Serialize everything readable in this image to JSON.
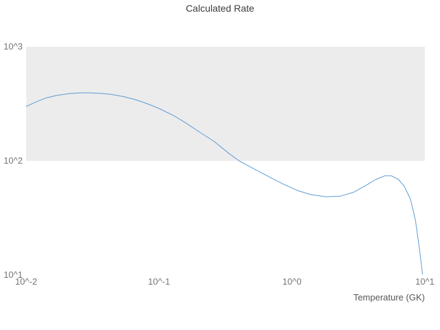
{
  "chart_data": {
    "type": "line",
    "title": "Calculated Rate",
    "xlabel": "Temperature (GK)",
    "ylabel": "",
    "x_scale": "log",
    "y_scale": "log",
    "xlim": [
      0.01,
      10
    ],
    "ylim": [
      10,
      1000
    ],
    "grid": false,
    "legend": "none",
    "x_tick_labels": [
      "10^-2",
      "10^-1",
      "10^0",
      "10^1"
    ],
    "x_tick_values": [
      0.01,
      0.1,
      1,
      10
    ],
    "y_tick_labels": [
      "10^1",
      "10^2",
      "10^3"
    ],
    "y_tick_values": [
      10,
      100,
      1000
    ],
    "band": {
      "y_from": 100,
      "y_to": 1000,
      "color": "#ececec"
    },
    "line_color": "#5b9bd5",
    "line_width": 1,
    "series": [
      {
        "name": "Calculated Rate",
        "x": [
          0.01,
          0.012,
          0.014,
          0.017,
          0.021,
          0.025,
          0.03,
          0.036,
          0.044,
          0.054,
          0.066,
          0.081,
          0.1,
          0.13,
          0.16,
          0.2,
          0.26,
          0.33,
          0.4,
          0.5,
          0.65,
          0.85,
          1.1,
          1.4,
          1.8,
          2.3,
          2.9,
          3.6,
          4.3,
          5.0,
          5.6,
          6.3,
          7.0,
          7.8,
          8.5,
          9.1,
          9.6
        ],
        "y": [
          300,
          330,
          355,
          375,
          388,
          394,
          395,
          391,
          382,
          366,
          345,
          318,
          288,
          248,
          214,
          180,
          148,
          118,
          100,
          87,
          74,
          63,
          55,
          50.5,
          48.5,
          49,
          53,
          61,
          69,
          74,
          74,
          69,
          60,
          46,
          30,
          17,
          10.2
        ]
      }
    ]
  }
}
